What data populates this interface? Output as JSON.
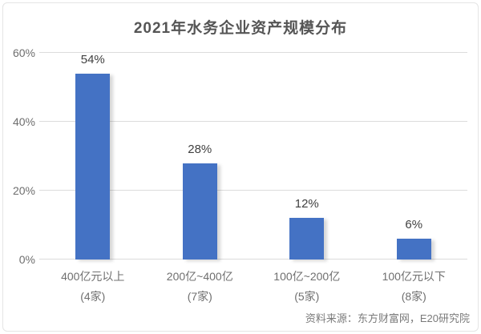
{
  "title": "2021年水务企业资产规模分布",
  "source": "资料来源：东方财富网，E20研究院",
  "colors": {
    "bar": "#4472c4",
    "gridline": "#dcdcdc",
    "title_text": "#555555",
    "axis_text": "#6e6e6e",
    "data_label_text": "#3f3f3f",
    "source_text": "#7a7a7a",
    "card_border": "#e4e4e4",
    "background": "#ffffff"
  },
  "chart_data": {
    "type": "bar",
    "title": "2021年水务企业资产规模分布",
    "categories": [
      "400亿元以上",
      "200亿~400亿",
      "100亿~200亿",
      "100亿元以下"
    ],
    "category_counts": [
      "(4家)",
      "(7家)",
      "(5家)",
      "(8家)"
    ],
    "values": [
      54,
      28,
      12,
      6
    ],
    "data_labels": [
      "54%",
      "28%",
      "12%",
      "6%"
    ],
    "yticks": [
      {
        "label": "0%",
        "value": 0
      },
      {
        "label": "20%",
        "value": 20
      },
      {
        "label": "40%",
        "value": 40
      },
      {
        "label": "60%",
        "value": 60
      }
    ],
    "ylim": [
      0,
      60
    ],
    "xlabel": "",
    "ylabel": "",
    "grid": true,
    "legend": "none",
    "source": "资料来源：东方财富网，E20研究院"
  }
}
